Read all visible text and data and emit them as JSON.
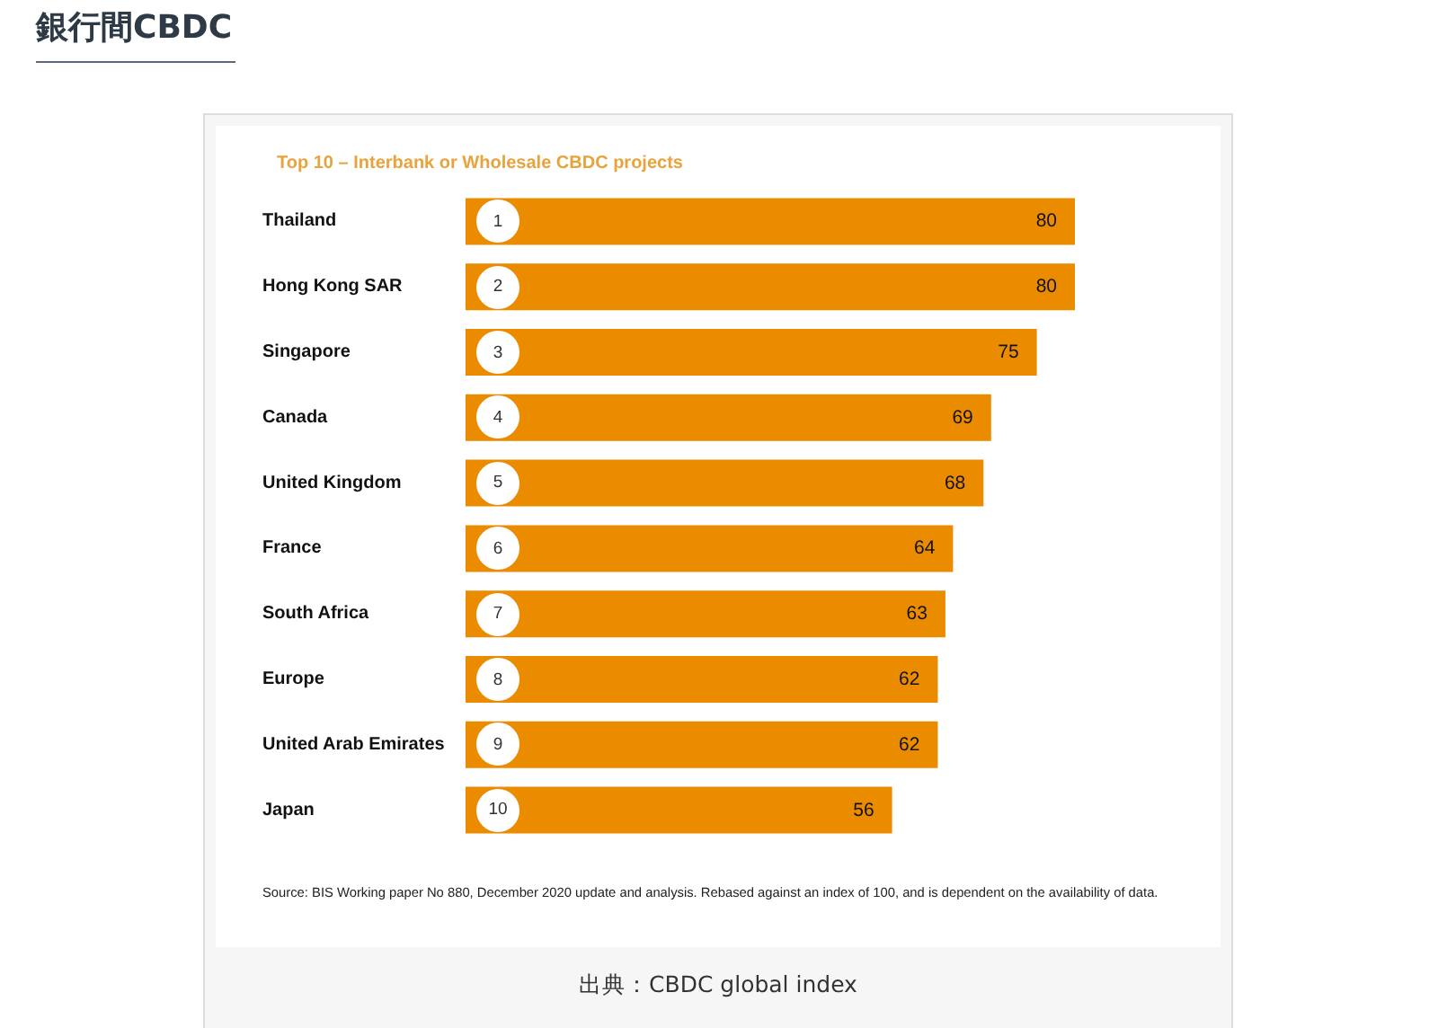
{
  "chart_data": {
    "type": "bar",
    "orientation": "horizontal",
    "title": "銀行間CBDC",
    "subtitle": "Top 10 – Interbank or Wholesale CBDC projects",
    "categories": [
      "Thailand",
      "Hong Kong SAR",
      "Singapore",
      "Canada",
      "United Kingdom",
      "France",
      "South Africa",
      "Europe",
      "United Arab Emirates",
      "Japan"
    ],
    "values": [
      80,
      80,
      75,
      69,
      68,
      64,
      63,
      62,
      62,
      56
    ],
    "color": "#eb8c00",
    "data_labels": true,
    "tick_labels": "y",
    "annotations": [
      {
        "text": "1",
        "y": "Thailand"
      },
      {
        "text": "2",
        "y": "Hong Kong SAR"
      },
      {
        "text": "3",
        "y": "Singapore"
      },
      {
        "text": "4",
        "y": "Canada"
      },
      {
        "text": "5",
        "y": "United Kingdom"
      },
      {
        "text": "6",
        "y": "France"
      },
      {
        "text": "7",
        "y": "South Africa"
      },
      {
        "text": "8",
        "y": "Europe"
      },
      {
        "text": "9",
        "y": "United Arab Emirates"
      },
      {
        "text": "10",
        "y": "Japan"
      },
      "Source: BIS Working paper No 880, December 2020 update and analysis. Rebased against an index of 100, and is dependent on the availability of data.",
      "出典：CBDC global index"
    ]
  }
}
